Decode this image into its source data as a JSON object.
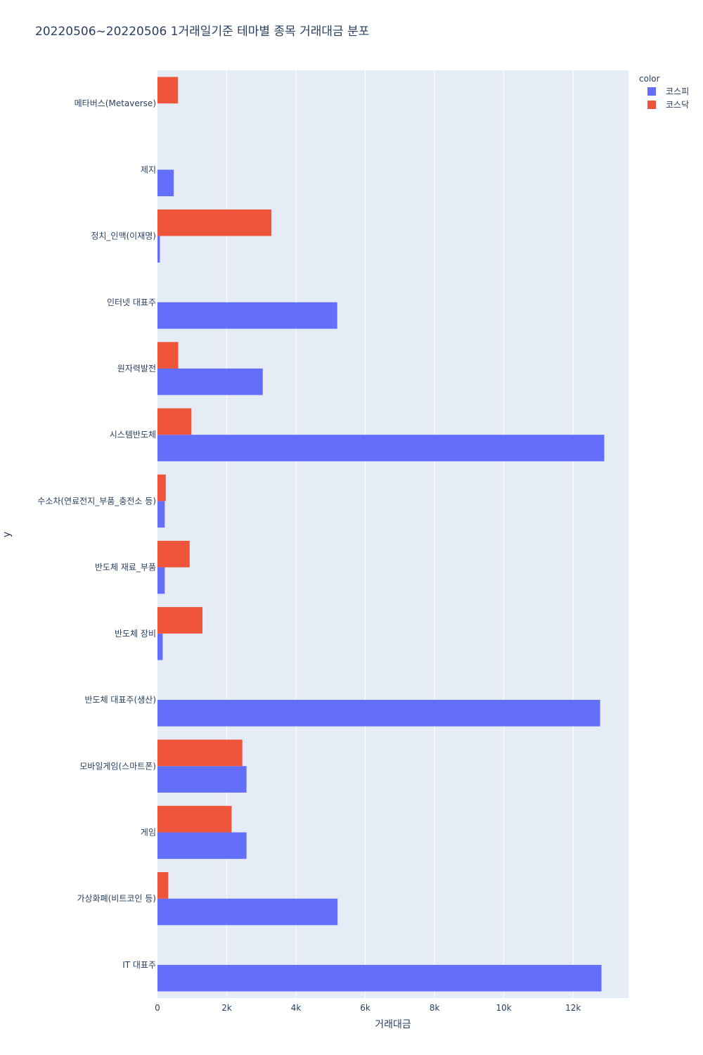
{
  "chart_data": {
    "type": "bar",
    "orientation": "horizontal",
    "barmode": "group",
    "title": "20220506~20220506 1거래일기준 테마별 종목 거래대금 분포",
    "xlabel": "거래대금",
    "ylabel": "y",
    "xlim": [
      0,
      13600
    ],
    "xticks": [
      {
        "value": 0,
        "label": "0"
      },
      {
        "value": 2000,
        "label": "2k"
      },
      {
        "value": 4000,
        "label": "4k"
      },
      {
        "value": 6000,
        "label": "6k"
      },
      {
        "value": 8000,
        "label": "8k"
      },
      {
        "value": 10000,
        "label": "10k"
      },
      {
        "value": 12000,
        "label": "12k"
      }
    ],
    "grid": true,
    "legend": {
      "title": "color",
      "position": "top-right"
    },
    "categories": [
      "IT 대표주",
      "가상화폐(비트코인 등)",
      "게임",
      "모바일게임(스마트폰)",
      "반도체 대표주(생산)",
      "반도체 장비",
      "반도체 재료_부품",
      "수소차(연료전지_부품_충전소 등)",
      "시스템반도체",
      "원자력발전",
      "인터넷 대표주",
      "정치_인맥(이재명)",
      "제지",
      "메타버스(Metaverse)"
    ],
    "series": [
      {
        "name": "코스피",
        "color": "#636efa",
        "values": [
          12820,
          5200,
          2570,
          2570,
          12780,
          150,
          210,
          210,
          12900,
          3040,
          5190,
          70,
          470,
          null
        ]
      },
      {
        "name": "코스닥",
        "color": "#ef553b",
        "values": [
          null,
          310,
          2140,
          2450,
          null,
          1300,
          930,
          240,
          980,
          600,
          null,
          3290,
          null,
          590
        ]
      }
    ]
  }
}
